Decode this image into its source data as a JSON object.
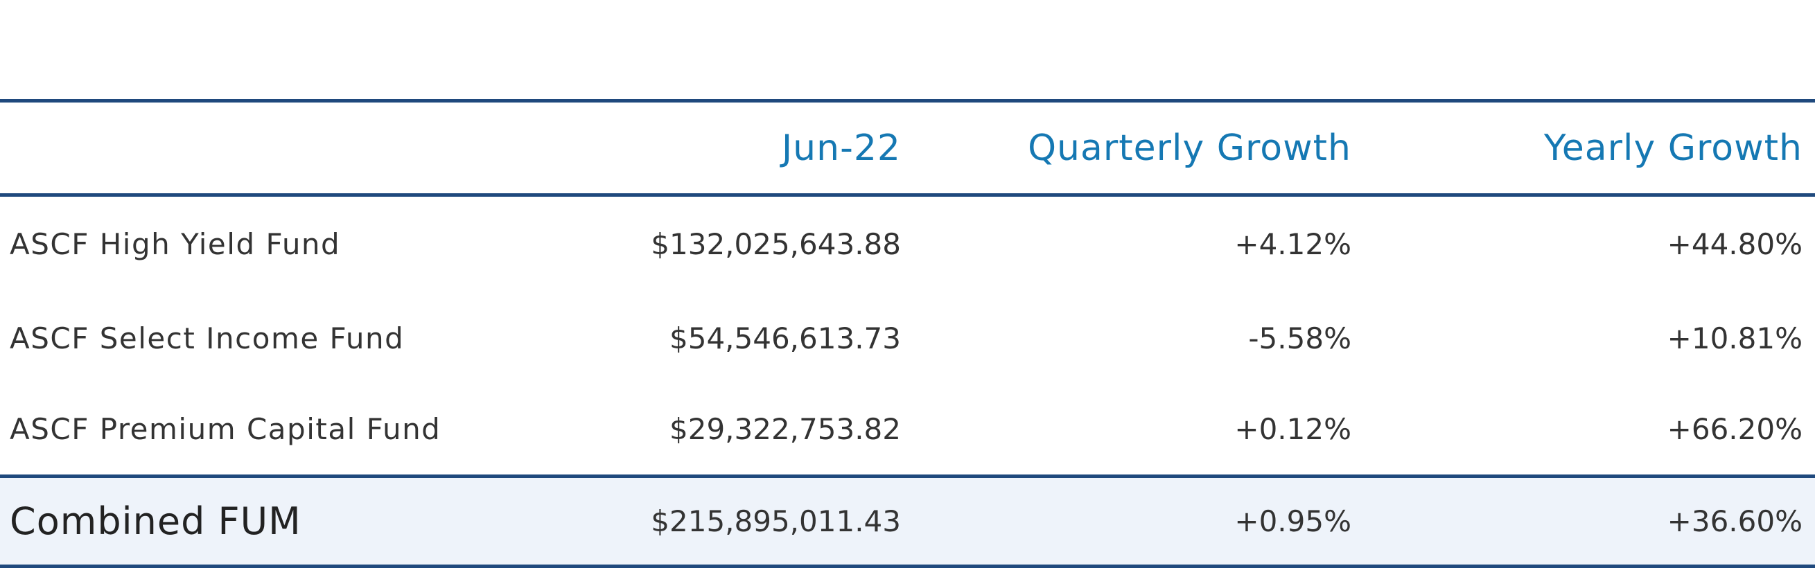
{
  "table": {
    "headers": [
      "",
      "Jun-22",
      "Quarterly Growth",
      "Yearly Growth"
    ],
    "rows": [
      {
        "name": "ASCF High Yield Fund",
        "fum": "$132,025,643.88",
        "quarterly": "+4.12%",
        "yearly": "+44.80%"
      },
      {
        "name": "ASCF Select Income Fund",
        "fum": "$54,546,613.73",
        "quarterly": "-5.58%",
        "yearly": "+10.81%"
      },
      {
        "name": "ASCF Premium Capital Fund",
        "fum": "$29,322,753.82",
        "quarterly": "+0.12%",
        "yearly": "+66.20%"
      }
    ],
    "total": {
      "name": "Combined FUM",
      "fum": "$215,895,011.43",
      "quarterly": "+0.95%",
      "yearly": "+36.60%"
    }
  },
  "colors": {
    "header_text": "#1578b3",
    "rule": "#1f497d",
    "total_background": "#eef3fa",
    "body_text": "#333333"
  }
}
